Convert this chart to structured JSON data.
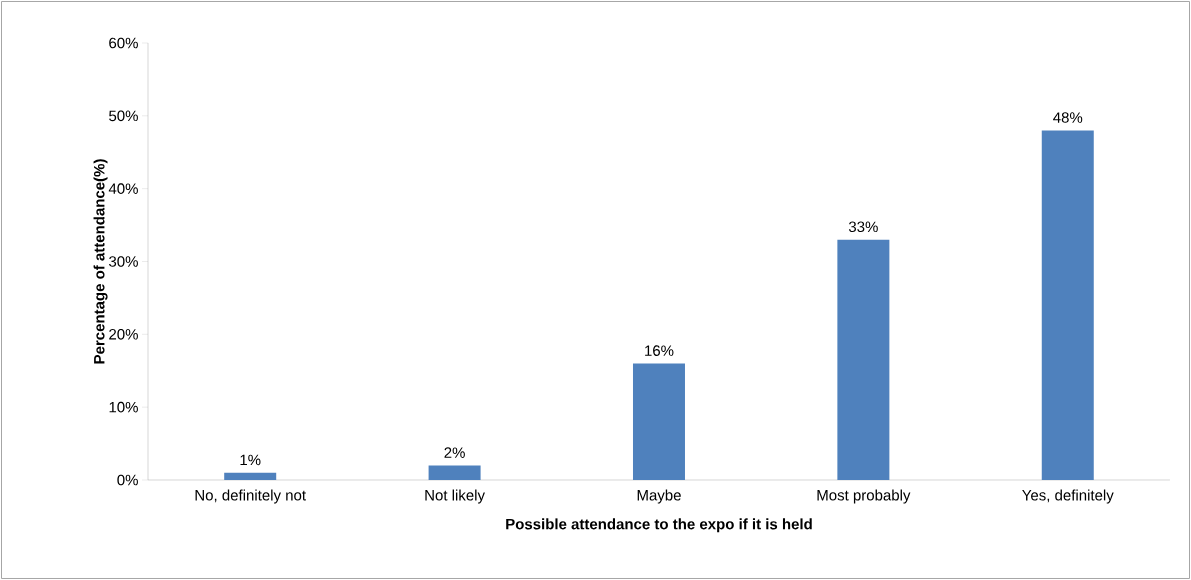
{
  "chart_data": {
    "type": "bar",
    "xlabel": "Possible attendance to the expo if it is held",
    "ylabel": "Percentage of attendance(%)",
    "categories": [
      "No, definitely not",
      "Not likely",
      "Maybe",
      "Most probably",
      "Yes, definitely"
    ],
    "values": [
      1,
      2,
      16,
      33,
      48
    ],
    "value_labels": [
      "1%",
      "2%",
      "16%",
      "33%",
      "48%"
    ],
    "color": "#4f81bd",
    "ylim": [
      0,
      60
    ],
    "yticks": [
      {
        "value": 0,
        "label": "0%"
      },
      {
        "value": 10,
        "label": "10%"
      },
      {
        "value": 20,
        "label": "20%"
      },
      {
        "value": 30,
        "label": "30%"
      },
      {
        "value": 40,
        "label": "40%"
      },
      {
        "value": 50,
        "label": "50%"
      },
      {
        "value": 60,
        "label": "60%"
      }
    ],
    "grid": false
  }
}
